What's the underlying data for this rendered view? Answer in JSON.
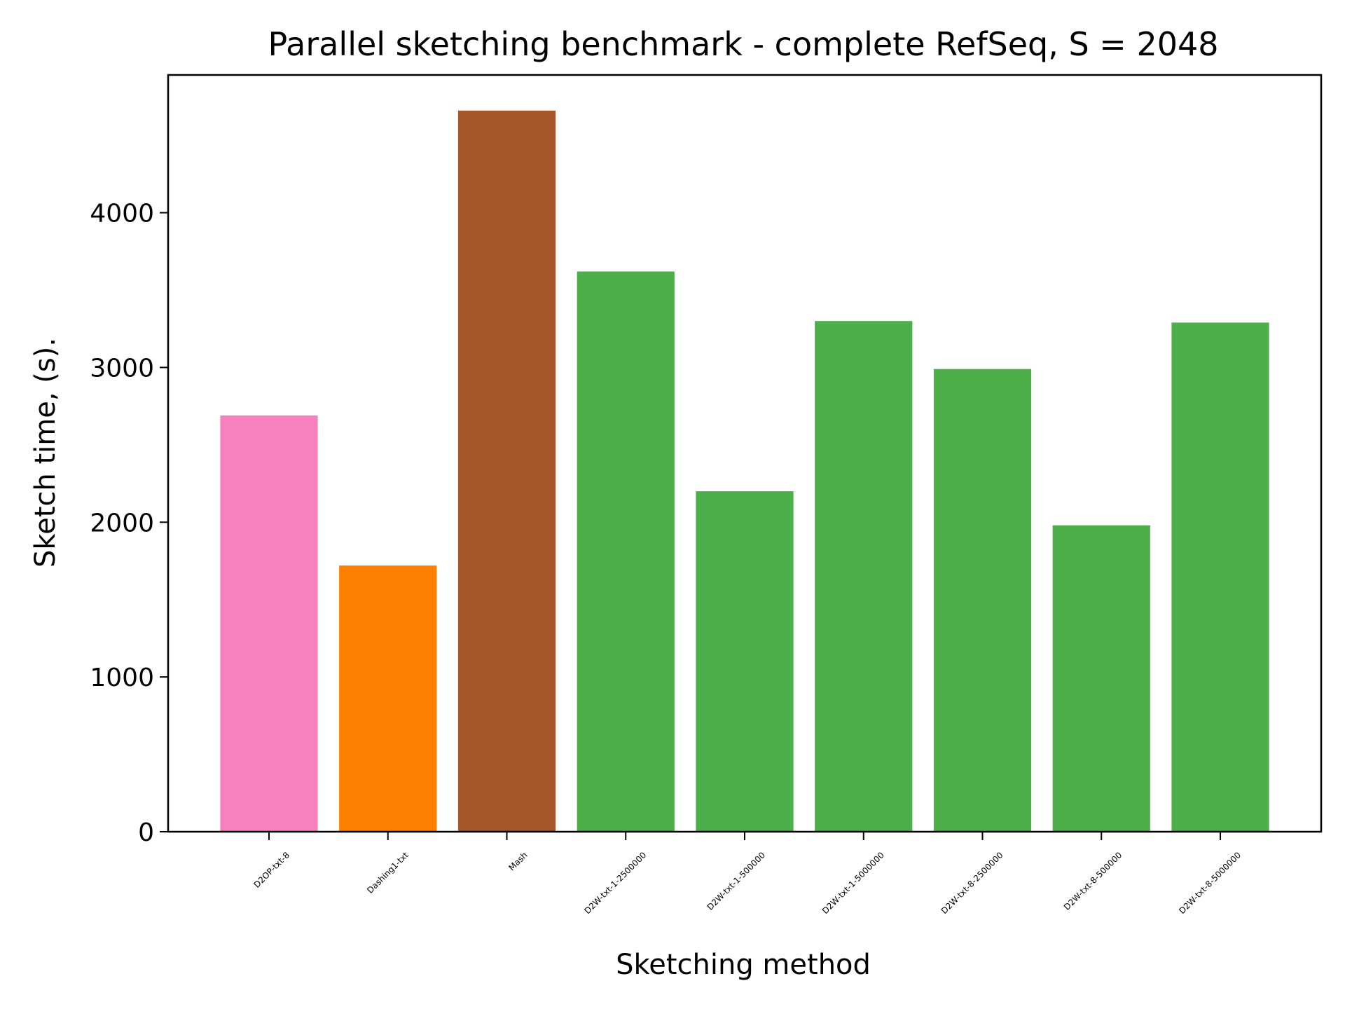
{
  "chart_data": {
    "type": "bar",
    "title": "Parallel sketching benchmark - complete RefSeq, S = 2048",
    "xlabel": "Sketching method",
    "ylabel": "Sketch time, (s).",
    "categories": [
      "D2OP-txt-8",
      "Dashing1-txt",
      "Mash",
      "D2W-txt-1-2500000",
      "D2W-txt-1-500000",
      "D2W-txt-1-5000000",
      "D2W-txt-8-2500000",
      "D2W-txt-8-500000",
      "D2W-txt-8-5000000"
    ],
    "values": [
      2690,
      1720,
      4660,
      3620,
      2200,
      3300,
      2990,
      1980,
      3290
    ],
    "colors": [
      "#f781bf",
      "#ff7f00",
      "#a65628",
      "#4daf4a",
      "#4daf4a",
      "#4daf4a",
      "#4daf4a",
      "#4daf4a",
      "#4daf4a"
    ],
    "ylim": [
      0,
      4890
    ],
    "yticks": [
      0,
      1000,
      2000,
      3000,
      4000
    ],
    "ytick_labels": [
      "0",
      "1000",
      "2000",
      "3000",
      "4000"
    ],
    "grid": false,
    "legend": "none"
  }
}
